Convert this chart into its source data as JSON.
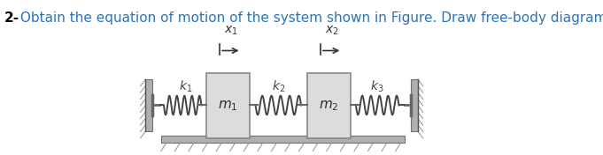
{
  "title_bold": "2-",
  "title_text": " Obtain the equation of motion of the system shown in Figure. Draw free-body diagram.",
  "title_color_bold": "#000000",
  "title_color_normal": "#2E74B5",
  "bg_color": "#ffffff",
  "fig_width": 6.81,
  "fig_height": 1.76,
  "dpi": 100,
  "m1_label": "$m_1$",
  "m2_label": "$m_2$",
  "k1_label": "$k_1$",
  "k2_label": "$k_2$",
  "k3_label": "$k_3$",
  "x1_label": "$x_1$",
  "x2_label": "$x_2$"
}
